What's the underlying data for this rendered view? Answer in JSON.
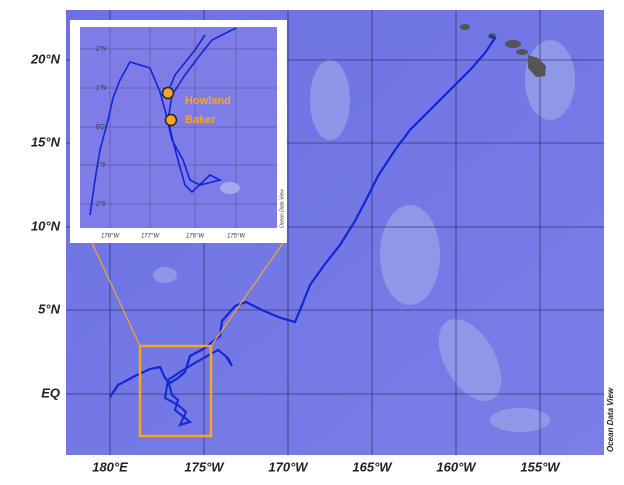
{
  "map": {
    "lat_labels": [
      "20°N",
      "15°N",
      "10°N",
      "5°N",
      "EQ"
    ],
    "lon_labels": [
      "180°E",
      "175°W",
      "170°W",
      "165°W",
      "160°W",
      "155°W"
    ],
    "credit": "Ocean Data View",
    "inset": {
      "lat_labels": [
        "2°N",
        "1°N",
        "EQ",
        "1°S",
        "2°S"
      ],
      "lon_labels": [
        "178°W",
        "177°W",
        "176°W",
        "175°W"
      ],
      "islands": [
        "Howland",
        "Baker"
      ],
      "credit": "Ocean Data View"
    }
  }
}
